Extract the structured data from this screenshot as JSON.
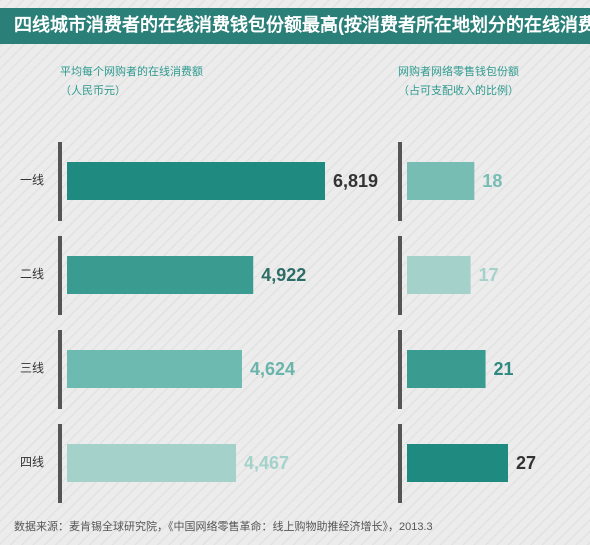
{
  "title": "四线城市消费者的在线消费钱包份额最高(按消费者所在地划分的在线消费)",
  "source": "数据来源：麦肯锡全球研究院，《中国网络零售革命：线上购物助推经济增长》，2013.3",
  "chart_data": [
    {
      "type": "bar",
      "orientation": "horizontal",
      "title": "平均每个网购者的在线消费额",
      "subtitle": "（人民币元）",
      "categories": [
        "一线",
        "二线",
        "三线",
        "四线"
      ],
      "values": [
        6819,
        4922,
        4624,
        4467
      ],
      "value_labels": [
        "6,819",
        "4,922",
        "4,624",
        "4,467"
      ],
      "colors": [
        "#1f8a80",
        "#3a9b91",
        "#6dbab1",
        "#a4d2cb"
      ],
      "label_colors": [
        "#333333",
        "#2e6d67",
        "#6ab5ab",
        "#a4d2cb"
      ]
    },
    {
      "type": "bar",
      "orientation": "horizontal",
      "title": "网购者网络零售钱包份额",
      "subtitle": "（占可支配收入的比例）",
      "values": [
        18,
        17,
        21,
        27
      ],
      "colors": [
        "#77bdb4",
        "#a4d2cb",
        "#3a9b91",
        "#1f8a80"
      ],
      "label_colors": [
        "#77bdb4",
        "#a4d2cb",
        "#2e8a81",
        "#333333"
      ]
    }
  ]
}
